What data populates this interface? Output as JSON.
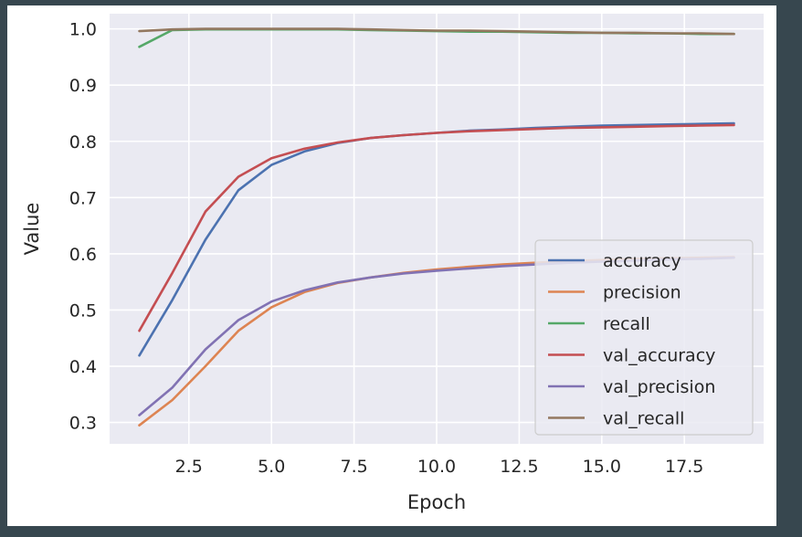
{
  "chart_data": {
    "type": "line",
    "xlabel": "Epoch",
    "ylabel": "Value",
    "xlim": [
      0.1,
      19.9
    ],
    "ylim": [
      0.262,
      1.027
    ],
    "xticks": [
      2.5,
      5.0,
      7.5,
      10.0,
      12.5,
      15.0,
      17.5
    ],
    "xtick_labels": [
      "2.5",
      "5.0",
      "7.5",
      "10.0",
      "12.5",
      "15.0",
      "17.5"
    ],
    "yticks": [
      0.3,
      0.4,
      0.5,
      0.6,
      0.7,
      0.8,
      0.9,
      1.0
    ],
    "ytick_labels": [
      "0.3",
      "0.4",
      "0.5",
      "0.6",
      "0.7",
      "0.8",
      "0.9",
      "1.0"
    ],
    "grid": true,
    "legend_position": "lower-right",
    "x": [
      1,
      2,
      3,
      4,
      5,
      6,
      7,
      8,
      9,
      10,
      11,
      12,
      13,
      14,
      15,
      16,
      17,
      18,
      19
    ],
    "series": [
      {
        "name": "accuracy",
        "color": "#4c72b0",
        "values": [
          0.419,
          0.518,
          0.625,
          0.713,
          0.758,
          0.782,
          0.797,
          0.806,
          0.811,
          0.815,
          0.819,
          0.821,
          0.824,
          0.826,
          0.828,
          0.829,
          0.83,
          0.831,
          0.832
        ]
      },
      {
        "name": "precision",
        "color": "#dd8452",
        "values": [
          0.295,
          0.34,
          0.4,
          0.463,
          0.505,
          0.532,
          0.548,
          0.558,
          0.566,
          0.572,
          0.577,
          0.581,
          0.584,
          0.587,
          0.589,
          0.591,
          0.592,
          0.593,
          0.594
        ]
      },
      {
        "name": "recall",
        "color": "#55a868",
        "values": [
          0.968,
          0.998,
          0.999,
          0.999,
          0.999,
          0.999,
          0.999,
          0.998,
          0.997,
          0.996,
          0.995,
          0.995,
          0.994,
          0.993,
          0.993,
          0.992,
          0.992,
          0.991,
          0.991
        ]
      },
      {
        "name": "val_accuracy",
        "color": "#c44e52",
        "values": [
          0.463,
          0.566,
          0.675,
          0.737,
          0.77,
          0.787,
          0.798,
          0.806,
          0.811,
          0.815,
          0.818,
          0.82,
          0.822,
          0.824,
          0.825,
          0.826,
          0.827,
          0.828,
          0.829
        ]
      },
      {
        "name": "val_precision",
        "color": "#8172b3",
        "values": [
          0.313,
          0.362,
          0.43,
          0.482,
          0.515,
          0.535,
          0.549,
          0.558,
          0.565,
          0.57,
          0.574,
          0.578,
          0.581,
          0.584,
          0.586,
          0.588,
          0.59,
          0.591,
          0.593
        ]
      },
      {
        "name": "val_recall",
        "color": "#937860",
        "values": [
          0.996,
          0.999,
          1.0,
          1.0,
          1.0,
          1.0,
          1.0,
          0.999,
          0.998,
          0.997,
          0.997,
          0.996,
          0.995,
          0.994,
          0.993,
          0.993,
          0.992,
          0.992,
          0.991
        ]
      }
    ]
  }
}
